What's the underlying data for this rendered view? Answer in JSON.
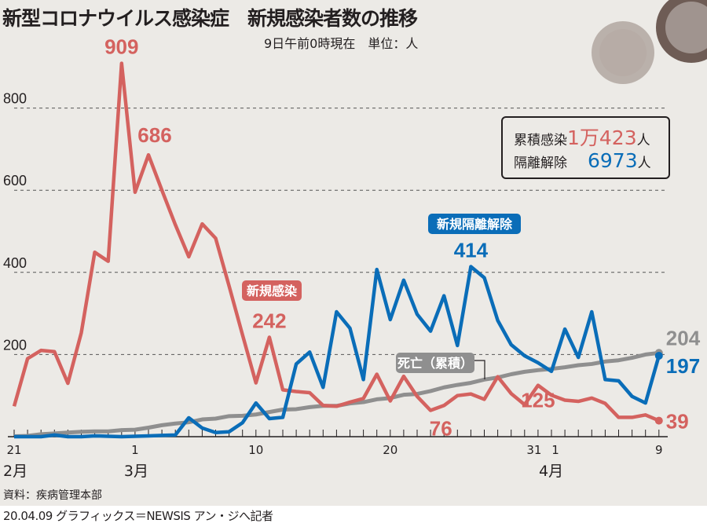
{
  "title": "新型コロナウイルス感染症　新規感染者数の推移",
  "subtitle": "9日午前0時現在　単位：人",
  "source": "資料：疾病管理本部",
  "credit": "20.04.09 グラフィックス＝NEWSIS アン・ジへ記者",
  "summary": {
    "cumulative_label": "累積感染",
    "cumulative_value": "1万423",
    "released_label": "隔離解除",
    "released_value": "6973",
    "unit": "人"
  },
  "chart_data": {
    "type": "line",
    "x_start": "2020-02-21",
    "x_end": "2020-04-09",
    "x_tick_labels": [
      {
        "label": "21",
        "date": "2020-02-21"
      },
      {
        "label": "1",
        "date": "2020-03-01"
      },
      {
        "label": "10",
        "date": "2020-03-10"
      },
      {
        "label": "20",
        "date": "2020-03-20"
      },
      {
        "label": "31",
        "date": "2020-03-31"
      },
      {
        "label": "1",
        "date": "2020-04-01"
      },
      {
        "label": "9",
        "date": "2020-04-09"
      }
    ],
    "month_labels": [
      {
        "label": "2月",
        "date": "2020-02-21"
      },
      {
        "label": "3月",
        "date": "2020-03-01"
      },
      {
        "label": "4月",
        "date": "2020-04-01"
      }
    ],
    "y_ticks": [
      "200",
      "400",
      "600",
      "800"
    ],
    "ylim": [
      0,
      900
    ],
    "grid": "horizontal dashed",
    "series": [
      {
        "name": "新規感染",
        "color": "#D4625F",
        "values": [
          74,
          190,
          210,
          207,
          130,
          253,
          449,
          427,
          909,
          595,
          686,
          600,
          516,
          438,
          518,
          483,
          367,
          248,
          131,
          242,
          114,
          110,
          107,
          76,
          74,
          84,
          93,
          152,
          87,
          147,
          98,
          64,
          76,
          100,
          104,
          91,
          146,
          105,
          78,
          125,
          101,
          89,
          86,
          94,
          81,
          47,
          47,
          53,
          39
        ],
        "labels": [
          {
            "text": "909",
            "index": 8
          },
          {
            "text": "686",
            "index": 10
          },
          {
            "text": "242",
            "index": 19
          },
          {
            "text": "76",
            "index": 32
          },
          {
            "text": "125",
            "index": 39
          },
          {
            "text": "39",
            "index": 48
          }
        ]
      },
      {
        "name": "新規隔離解除",
        "color": "#0A6DB8",
        "values": [
          0,
          0,
          0,
          4,
          0,
          0,
          2,
          1,
          0,
          1,
          2,
          3,
          4,
          46,
          21,
          10,
          12,
          34,
          82,
          44,
          47,
          177,
          206,
          120,
          304,
          264,
          139,
          407,
          285,
          381,
          298,
          257,
          343,
          222,
          414,
          387,
          283,
          224,
          197,
          180,
          159,
          262,
          193,
          304,
          139,
          136,
          98,
          82,
          197
        ],
        "labels": [
          {
            "text": "414",
            "index": 34
          },
          {
            "text": "197",
            "index": 48
          }
        ]
      },
      {
        "name": "死亡（累積）",
        "color": "#8F8F8F",
        "values": [
          1,
          2,
          6,
          8,
          10,
          12,
          13,
          13,
          16,
          17,
          22,
          28,
          32,
          35,
          42,
          44,
          50,
          51,
          54,
          60,
          66,
          67,
          72,
          75,
          75,
          81,
          84,
          91,
          94,
          102,
          104,
          111,
          120,
          126,
          131,
          139,
          144,
          152,
          158,
          162,
          165,
          169,
          174,
          177,
          183,
          186,
          192,
          200,
          204
        ],
        "labels": [
          {
            "text": "204",
            "index": 48
          }
        ]
      }
    ]
  }
}
